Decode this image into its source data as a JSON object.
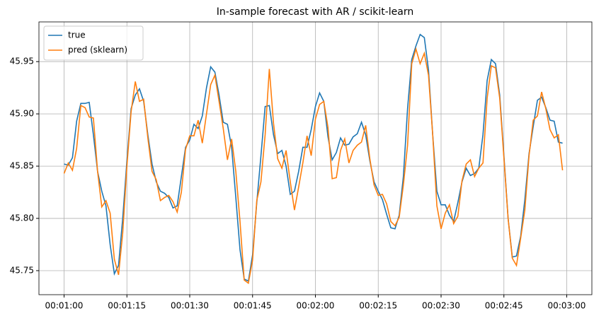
{
  "chart_data": {
    "type": "line",
    "title": "In-sample forecast with AR / scikit-learn",
    "x": [
      "00:01:00",
      "00:01:01",
      "00:01:02",
      "00:01:03",
      "00:01:04",
      "00:01:05",
      "00:01:06",
      "00:01:07",
      "00:01:08",
      "00:01:09",
      "00:01:10",
      "00:01:11",
      "00:01:12",
      "00:01:13",
      "00:01:14",
      "00:01:15",
      "00:01:16",
      "00:01:17",
      "00:01:18",
      "00:01:19",
      "00:01:20",
      "00:01:21",
      "00:01:22",
      "00:01:23",
      "00:01:24",
      "00:01:25",
      "00:01:26",
      "00:01:27",
      "00:01:28",
      "00:01:29",
      "00:01:30",
      "00:01:31",
      "00:01:32",
      "00:01:33",
      "00:01:34",
      "00:01:35",
      "00:01:36",
      "00:01:37",
      "00:01:38",
      "00:01:39",
      "00:01:40",
      "00:01:41",
      "00:01:42",
      "00:01:43",
      "00:01:44",
      "00:01:45",
      "00:01:46",
      "00:01:47",
      "00:01:48",
      "00:01:49",
      "00:01:50",
      "00:01:51",
      "00:01:52",
      "00:01:53",
      "00:01:54",
      "00:01:55",
      "00:01:56",
      "00:01:57",
      "00:01:58",
      "00:01:59",
      "00:02:00",
      "00:02:01",
      "00:02:02",
      "00:02:03",
      "00:02:04",
      "00:02:05",
      "00:02:06",
      "00:02:07",
      "00:02:08",
      "00:02:09",
      "00:02:10",
      "00:02:11",
      "00:02:12",
      "00:02:13",
      "00:02:14",
      "00:02:15",
      "00:02:16",
      "00:02:17",
      "00:02:18",
      "00:02:19",
      "00:02:20",
      "00:02:21",
      "00:02:22",
      "00:02:23",
      "00:02:24",
      "00:02:25",
      "00:02:26",
      "00:02:27",
      "00:02:28",
      "00:02:29",
      "00:02:30",
      "00:02:31",
      "00:02:32",
      "00:02:33",
      "00:02:34",
      "00:02:35",
      "00:02:36",
      "00:02:37",
      "00:02:38",
      "00:02:39",
      "00:02:40",
      "00:02:41",
      "00:02:42",
      "00:02:43",
      "00:02:44",
      "00:02:45",
      "00:02:46",
      "00:02:47",
      "00:02:48",
      "00:02:49",
      "00:02:50",
      "00:02:51",
      "00:02:52",
      "00:02:53",
      "00:02:54",
      "00:02:55",
      "00:02:56",
      "00:02:57",
      "00:02:58",
      "00:02:59"
    ],
    "series": [
      {
        "name": "true",
        "color": "#1f77b4",
        "values": [
          45.852,
          45.851,
          45.858,
          45.893,
          45.91,
          45.91,
          45.911,
          45.88,
          45.845,
          45.826,
          45.812,
          45.775,
          45.747,
          45.755,
          45.8,
          45.855,
          45.905,
          45.918,
          45.924,
          45.912,
          45.88,
          45.852,
          45.835,
          45.826,
          45.824,
          45.82,
          45.81,
          45.812,
          45.84,
          45.868,
          45.875,
          45.89,
          45.886,
          45.898,
          45.925,
          45.945,
          45.94,
          45.918,
          45.892,
          45.89,
          45.868,
          45.82,
          45.77,
          45.742,
          45.74,
          45.765,
          45.815,
          45.86,
          45.907,
          45.908,
          45.88,
          45.862,
          45.865,
          45.85,
          45.823,
          45.826,
          45.845,
          45.868,
          45.868,
          45.885,
          45.907,
          45.92,
          45.912,
          45.878,
          45.856,
          45.863,
          45.877,
          45.87,
          45.871,
          45.878,
          45.881,
          45.892,
          45.88,
          45.855,
          45.835,
          45.826,
          45.818,
          45.804,
          45.791,
          45.79,
          45.803,
          45.84,
          45.905,
          45.952,
          45.965,
          45.976,
          45.973,
          45.942,
          45.88,
          45.826,
          45.813,
          45.813,
          45.803,
          45.797,
          45.815,
          45.835,
          45.848,
          45.841,
          45.843,
          45.848,
          45.88,
          45.932,
          45.952,
          45.948,
          45.918,
          45.86,
          45.8,
          45.763,
          45.764,
          45.783,
          45.818,
          45.862,
          45.888,
          45.913,
          45.916,
          45.906,
          45.894,
          45.893,
          45.873,
          45.872
        ]
      },
      {
        "name": "pred (sklearn)",
        "color": "#ff7f0e",
        "values": [
          45.843,
          45.853,
          45.846,
          45.867,
          45.908,
          45.906,
          45.897,
          45.896,
          45.845,
          45.811,
          45.817,
          45.805,
          45.761,
          45.746,
          45.786,
          45.85,
          45.902,
          45.931,
          45.912,
          45.914,
          45.877,
          45.845,
          45.837,
          45.817,
          45.82,
          45.822,
          45.816,
          45.806,
          45.825,
          45.866,
          45.879,
          45.879,
          45.894,
          45.872,
          45.9,
          45.928,
          45.937,
          45.912,
          45.886,
          45.856,
          45.876,
          45.845,
          45.797,
          45.741,
          45.738,
          45.76,
          45.817,
          45.835,
          45.88,
          45.943,
          45.891,
          45.857,
          45.848,
          45.865,
          45.835,
          45.808,
          45.83,
          45.853,
          45.879,
          45.86,
          45.895,
          45.909,
          45.912,
          45.887,
          45.838,
          45.839,
          45.865,
          45.876,
          45.853,
          45.865,
          45.87,
          45.873,
          45.889,
          45.857,
          45.832,
          45.822,
          45.823,
          45.814,
          45.797,
          45.793,
          45.801,
          45.832,
          45.87,
          45.948,
          45.962,
          45.948,
          45.958,
          45.937,
          45.88,
          45.812,
          45.79,
          45.805,
          45.813,
          45.795,
          45.802,
          45.836,
          45.852,
          45.856,
          45.84,
          45.848,
          45.853,
          45.915,
          45.946,
          45.944,
          45.915,
          45.858,
          45.8,
          45.762,
          45.755,
          45.781,
          45.808,
          45.86,
          45.894,
          45.898,
          45.921,
          45.905,
          45.885,
          45.877,
          45.88,
          45.846
        ]
      }
    ],
    "xlim": [
      "00:00:54",
      "00:03:06"
    ],
    "xticks": [
      "00:01:00",
      "00:01:15",
      "00:01:30",
      "00:01:45",
      "00:02:00",
      "00:02:15",
      "00:02:30",
      "00:02:45",
      "00:03:00"
    ],
    "ylim": [
      45.727,
      45.988
    ],
    "yticks": [
      45.75,
      {
        "value": 45.8,
        "label": "45.80"
      },
      45.85,
      {
        "value": 45.9,
        "label": "45.90"
      },
      45.95
    ],
    "grid": true,
    "legend": "upper-left"
  }
}
